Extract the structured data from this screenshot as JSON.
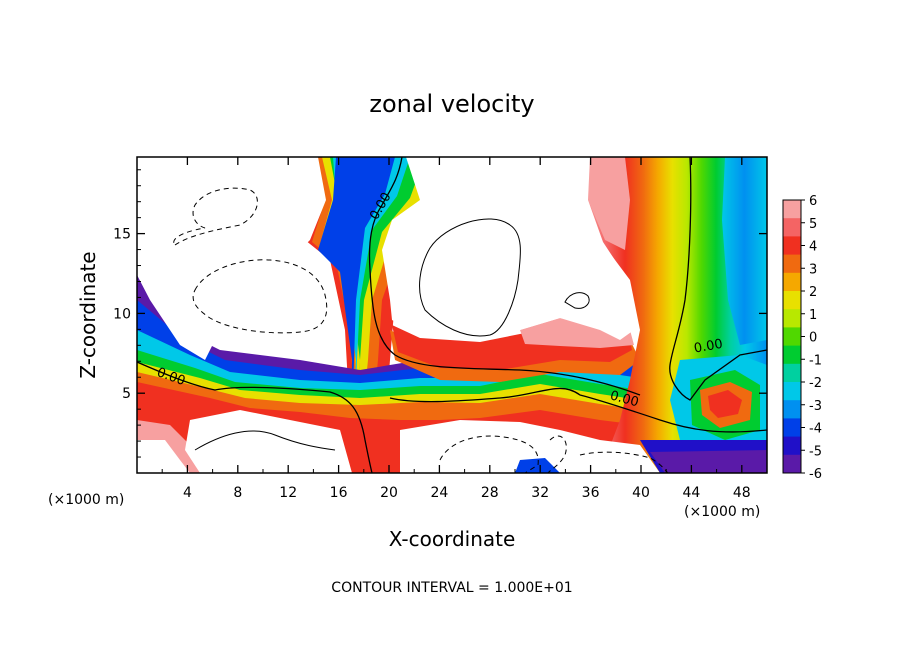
{
  "chart_data": {
    "type": "heatmap",
    "title": "zonal velocity",
    "xlabel": "X-coordinate",
    "ylabel": "Z-coordinate",
    "x_unit_label": "(×1000 m)",
    "x_unit_label_right": "(×1000 m)",
    "footer": "CONTOUR INTERVAL = 1.000E+01",
    "xlim": [
      0,
      50
    ],
    "ylim": [
      0,
      19.8
    ],
    "x_ticks": [
      4,
      8,
      12,
      16,
      20,
      24,
      28,
      32,
      36,
      40,
      44,
      48
    ],
    "y_ticks": [
      5,
      10,
      15
    ],
    "colorbar": {
      "levels": [
        6,
        5,
        4,
        3,
        2,
        1,
        0,
        -1,
        -2,
        -3,
        -4,
        -5,
        -6
      ],
      "colors": [
        "#f7a0a0",
        "#f46464",
        "#f03020",
        "#f06a10",
        "#f5a800",
        "#e8e000",
        "#b8e800",
        "#50d800",
        "#00cc30",
        "#00d0a0",
        "#00c8e8",
        "#0090f0",
        "#0040e8",
        "#2010c8",
        "#5a1aa8"
      ]
    },
    "contour_labels": [
      {
        "text": "0.00",
        "x": 19.6,
        "y": 16.6
      },
      {
        "text": "0.00",
        "x": 2.6,
        "y": 5.8
      },
      {
        "text": "0.00",
        "x": 38.6,
        "y": 4.4
      },
      {
        "text": "0.00",
        "x": 45.4,
        "y": 7.7
      }
    ],
    "colors": {
      "accent_red": "#f03020",
      "accent_blue": "#0040e8",
      "accent_green": "#50d800"
    }
  }
}
